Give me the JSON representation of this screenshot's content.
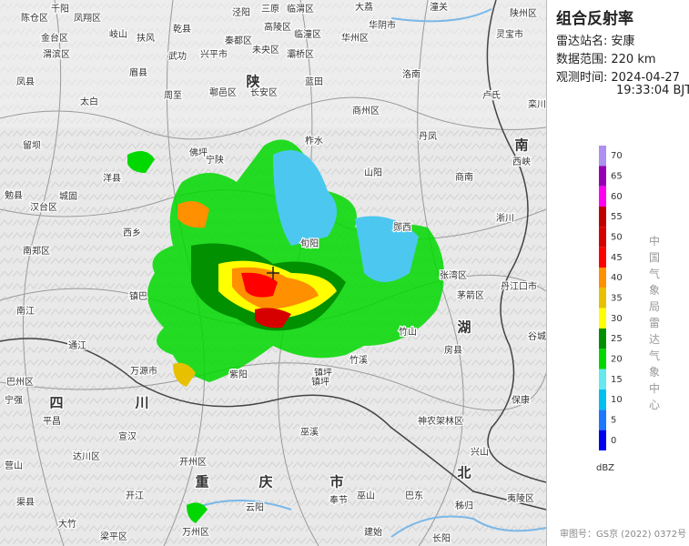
{
  "header": {
    "title": "组合反射率",
    "station_label": "雷达站名:",
    "station": "安康",
    "range_label": "数据范围:",
    "range": "220 km",
    "time_label": "观测时间:",
    "date": "2024-04-27",
    "time": "19:33:04 BJT"
  },
  "legend": {
    "unit": "dBZ",
    "ticks": [
      70,
      65,
      60,
      55,
      50,
      45,
      40,
      35,
      30,
      25,
      20,
      15,
      10,
      5,
      0
    ],
    "colors": [
      "#ad90f0",
      "#9600b4",
      "#ff00f0",
      "#c00000",
      "#d60000",
      "#ff0000",
      "#ff9000",
      "#e7c000",
      "#ffff00",
      "#019000",
      "#00d800",
      "#66e8f0",
      "#00c0f0",
      "#1e78ff",
      "#0000f0"
    ]
  },
  "credit": "中国气象局雷达气象中心",
  "footer": "审图号：GS京 (2022) 0372号",
  "places": [
    "千阳",
    "凤翔区",
    "陈仓区",
    "岐山",
    "扶风",
    "乾县",
    "泾阳",
    "三原",
    "临渭区",
    "大荔",
    "潼关",
    "华阴市",
    "陕州区",
    "灵宝市",
    "金台区",
    "渭滨区",
    "眉县",
    "武功",
    "兴平市",
    "秦都区",
    "未央区",
    "高陵区",
    "临潼区",
    "华州区",
    "灞桥区",
    "鄠邑区",
    "长安区",
    "陕",
    "周至",
    "蓝田",
    "洛南",
    "卢氏",
    "商州区",
    "凤县",
    "太白",
    "留坝",
    "丹凤",
    "栾川",
    "南",
    "西峡",
    "佛坪",
    "宁陕",
    "柞水",
    "山阳",
    "商南",
    "洋县",
    "城固",
    "勉县",
    "汉台区",
    "西乡",
    "南郑区",
    "淅川",
    "郧西",
    "张湾区",
    "茅箭区",
    "丹江口市",
    "镇巴",
    "南江",
    "旬阳",
    "竹山",
    "房县",
    "谷城",
    "湖",
    "通江",
    "万源市",
    "紫阳",
    "镇坪",
    "竹溪",
    "保康",
    "巴州区",
    "四",
    "川",
    "平昌",
    "宣汉",
    "巫溪",
    "神农架林区",
    "兴山",
    "达川区",
    "营山",
    "开州区",
    "重",
    "庆",
    "市",
    "北",
    "开江",
    "渠县",
    "云阳",
    "奉节",
    "巫山",
    "巴东",
    "秭归",
    "夷陵区",
    "大竹",
    "梁平区",
    "万州区",
    "建始",
    "长阳",
    "镇坪",
    "宁强"
  ]
}
